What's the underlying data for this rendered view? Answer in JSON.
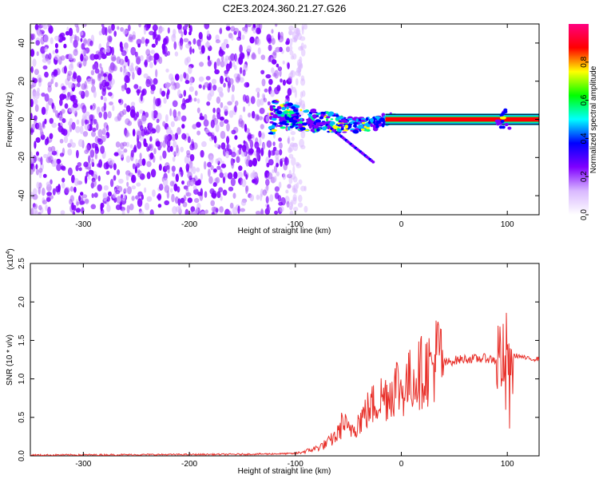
{
  "title": "C2E3.2024.360.21.27.G26",
  "chart_data": [
    {
      "type": "heatmap",
      "xlabel": "Height of straight line (km)",
      "ylabel": "Frequency (Hz)",
      "xlim": [
        -350,
        130
      ],
      "ylim": [
        -50,
        50
      ],
      "xticks": [
        -300,
        -200,
        -100,
        0,
        100
      ],
      "yticks": [
        -40,
        -20,
        0,
        20,
        40
      ],
      "colorbar": {
        "label": "Normalized spectral amplitude",
        "range": [
          0,
          1
        ],
        "ticks": [
          "0.0",
          "0.2",
          "0.4",
          "0.6",
          "0.8"
        ],
        "colormap": [
          "#ffffff",
          "#d9b8ff",
          "#7f00ff",
          "#0000ff",
          "#00ffff",
          "#00ff00",
          "#ffff00",
          "#ff0000",
          "#ff0080"
        ]
      },
      "noise_region_x": [
        -350,
        -105
      ],
      "signal_track": {
        "x": [
          -120,
          -100,
          -80,
          -60,
          -40,
          -25,
          -15,
          -5,
          0,
          50,
          90,
          100,
          130
        ],
        "freq": [
          3,
          1,
          -1,
          -2,
          -3,
          -2,
          0,
          1,
          0,
          0,
          0,
          0,
          0
        ]
      },
      "grid": false,
      "legend": "none"
    },
    {
      "type": "line",
      "xlabel": "Height of straight line (km)",
      "ylabel": "SNR (10 * v/v)",
      "y_scale_label": "(x10",
      "y_scale_exp": "4",
      "xlim": [
        -350,
        130
      ],
      "ylim": [
        0,
        2.5
      ],
      "xticks": [
        -300,
        -200,
        -100,
        0,
        100
      ],
      "yticks": [
        "0.0",
        "0.5",
        "1.0",
        "1.5",
        "2.0",
        "2.5"
      ],
      "series": [
        {
          "color": "#e8302a",
          "x": [
            -350,
            -150,
            -100,
            -90,
            -80,
            -70,
            -60,
            -55,
            -50,
            -40,
            -30,
            -20,
            -10,
            -5,
            0,
            10,
            20,
            30,
            35,
            40,
            50,
            60,
            70,
            80,
            90,
            95,
            98,
            100,
            102,
            105,
            110,
            120,
            130
          ],
          "y": [
            0.01,
            0.02,
            0.03,
            0.06,
            0.1,
            0.16,
            0.28,
            0.45,
            0.32,
            0.45,
            0.62,
            0.75,
            0.82,
            0.95,
            0.85,
            1.0,
            1.1,
            1.18,
            1.35,
            1.2,
            1.24,
            1.26,
            1.26,
            1.27,
            1.24,
            1.35,
            0.8,
            1.7,
            0.7,
            1.3,
            1.3,
            1.26,
            1.26
          ]
        }
      ],
      "grid": false,
      "legend": "none"
    }
  ]
}
